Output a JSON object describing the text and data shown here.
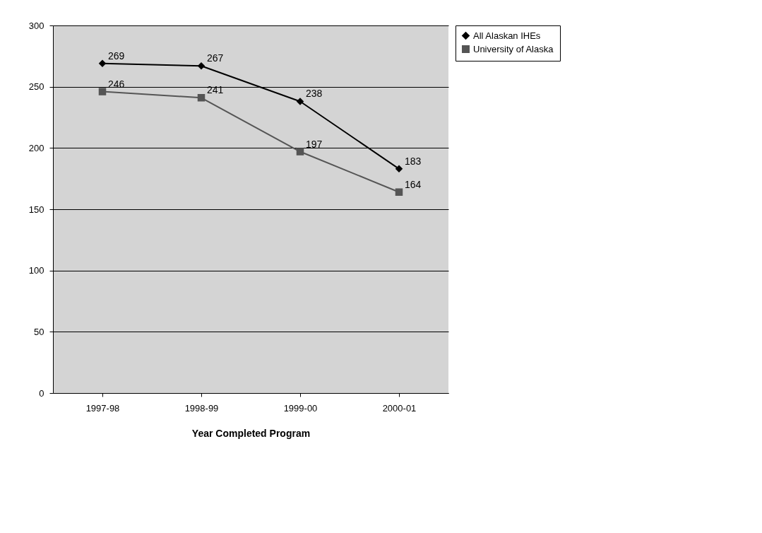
{
  "chart_data": {
    "type": "line",
    "xlabel": "Year Completed Program",
    "categories": [
      "1997-98",
      "1998-99",
      "1999-00",
      "2000-01"
    ],
    "series": [
      {
        "name": "All Alaskan IHEs",
        "color": "#000000",
        "marker": "diamond",
        "values": [
          269,
          267,
          238,
          183
        ]
      },
      {
        "name": "University of Alaska",
        "color": "#555555",
        "marker": "square",
        "values": [
          246,
          241,
          197,
          164
        ]
      }
    ],
    "ylim": [
      0,
      300
    ],
    "yticks": [
      0,
      50,
      100,
      150,
      200,
      250,
      300
    ],
    "grid": "y",
    "legend": "right",
    "data_labels": true,
    "line_style": "solid"
  }
}
